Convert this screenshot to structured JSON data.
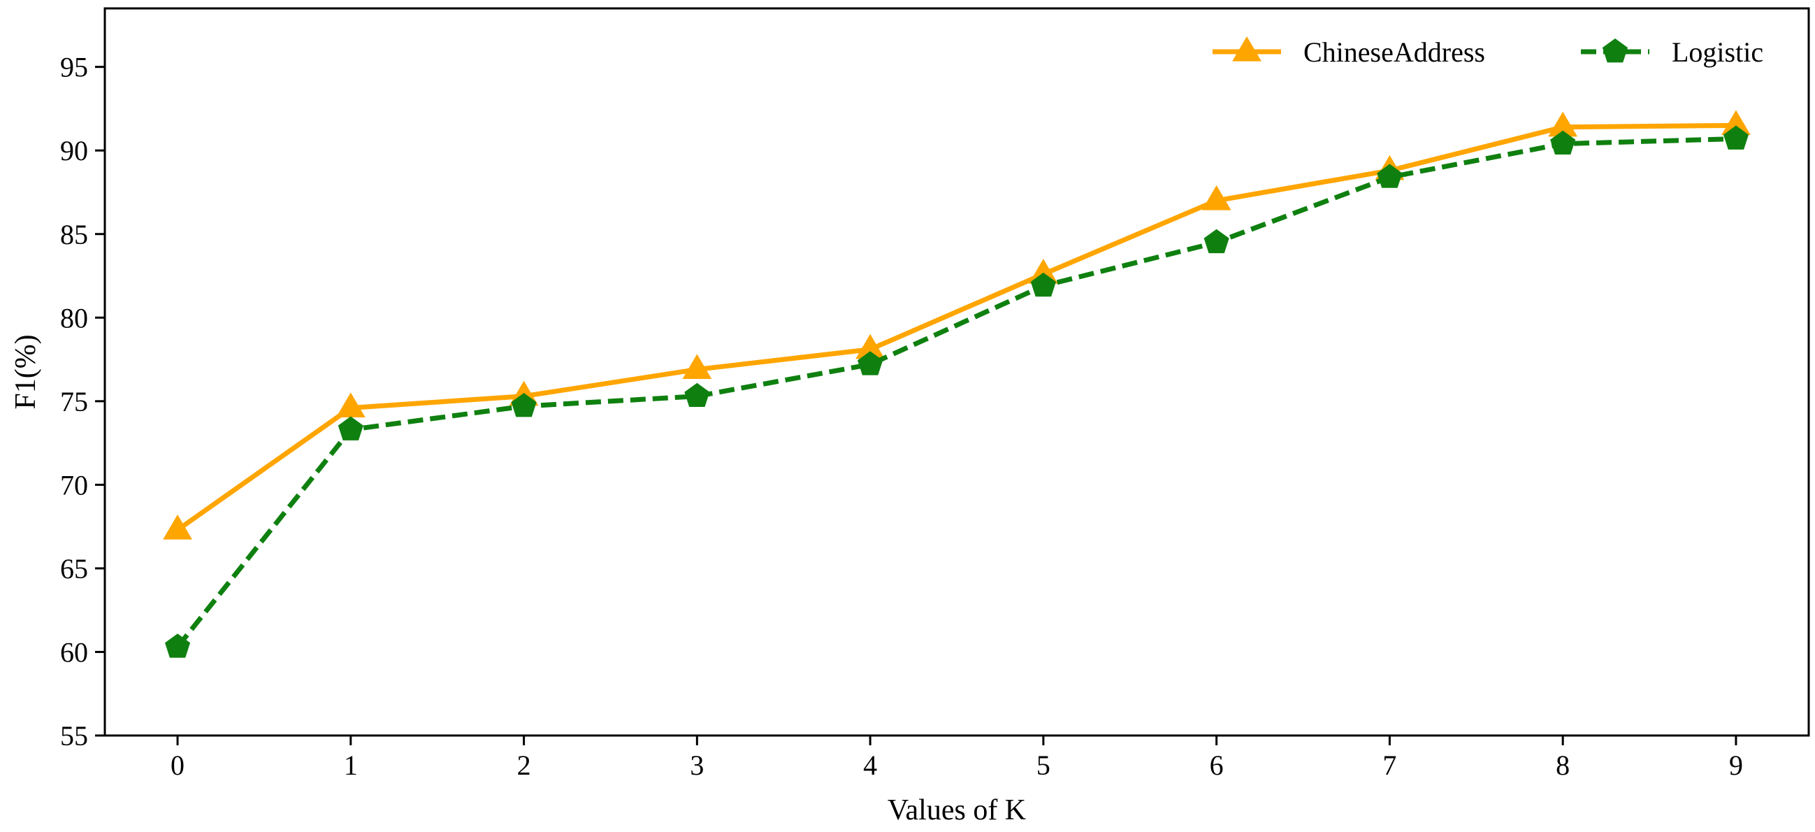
{
  "chart_data": {
    "type": "line",
    "xlabel": "Values of K",
    "ylabel": "F1(%)",
    "xlim": [
      -0.42,
      9.42
    ],
    "ylim": [
      55,
      98.5
    ],
    "x_ticks": [
      0,
      1,
      2,
      3,
      4,
      5,
      6,
      7,
      8,
      9
    ],
    "y_ticks": [
      55,
      60,
      65,
      70,
      75,
      80,
      85,
      90,
      95
    ],
    "x_tick_labels": [
      "0",
      "1",
      "2",
      "3",
      "4",
      "5",
      "6",
      "7",
      "8",
      "9"
    ],
    "y_tick_labels": [
      "55",
      "60",
      "65",
      "70",
      "75",
      "80",
      "85",
      "90",
      "95"
    ],
    "grid": false,
    "legend_position": "top-right",
    "x": [
      0,
      1,
      2,
      3,
      4,
      5,
      6,
      7,
      8,
      9
    ],
    "series": [
      {
        "name": "ChineseAddress",
        "values": [
          67.3,
          74.6,
          75.3,
          76.9,
          78.1,
          82.6,
          87.0,
          88.8,
          91.4,
          91.5
        ],
        "color": "#FFA500",
        "marker": "triangle",
        "line_style": "solid"
      },
      {
        "name": "Logistic",
        "values": [
          60.3,
          73.3,
          74.7,
          75.3,
          77.2,
          81.9,
          84.5,
          88.4,
          90.4,
          90.7
        ],
        "color": "#0F800F",
        "marker": "pentagon",
        "line_style": "dashed"
      }
    ]
  }
}
